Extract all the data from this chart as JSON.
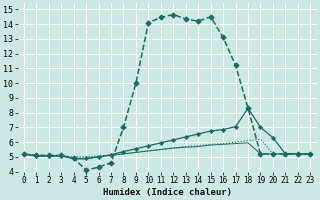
{
  "xlabel": "Humidex (Indice chaleur)",
  "bg_color": "#cce8e4",
  "grid_color": "#ffffff",
  "line_color": "#1a6b5a",
  "xlim": [
    -0.5,
    23.5
  ],
  "ylim": [
    4,
    15.4
  ],
  "xticks": [
    0,
    1,
    2,
    3,
    4,
    5,
    6,
    7,
    8,
    9,
    10,
    11,
    12,
    13,
    14,
    15,
    16,
    17,
    18,
    19,
    20,
    21,
    22,
    23
  ],
  "yticks": [
    4,
    5,
    6,
    7,
    8,
    9,
    10,
    11,
    12,
    13,
    14,
    15
  ],
  "curve1_x": [
    0,
    1,
    2,
    3,
    4,
    5,
    6,
    7,
    8,
    9,
    10,
    11,
    12,
    13,
    14,
    15,
    16,
    17,
    18,
    19,
    20,
    21,
    22,
    23
  ],
  "curve1_y": [
    5.2,
    5.1,
    5.1,
    5.1,
    4.9,
    4.1,
    4.3,
    4.6,
    7.0,
    10.0,
    14.1,
    14.45,
    14.65,
    14.35,
    14.2,
    14.5,
    13.1,
    11.2,
    8.3,
    5.2,
    5.2,
    5.2,
    5.2,
    5.2
  ],
  "curve2_x": [
    0,
    1,
    2,
    3,
    4,
    5,
    6,
    7,
    8,
    9,
    10,
    11,
    12,
    13,
    14,
    15,
    16,
    17,
    18,
    19,
    20,
    21,
    22,
    23
  ],
  "curve2_y": [
    5.2,
    5.05,
    5.05,
    5.05,
    4.9,
    4.9,
    5.0,
    5.15,
    5.35,
    5.55,
    5.75,
    5.95,
    6.15,
    6.35,
    6.55,
    6.75,
    6.85,
    7.05,
    8.3,
    7.0,
    6.3,
    5.2,
    5.2,
    5.2
  ],
  "curve3_x": [
    0,
    1,
    2,
    3,
    4,
    5,
    6,
    7,
    8,
    9,
    10,
    11,
    12,
    13,
    14,
    15,
    16,
    17,
    18,
    19,
    20,
    21,
    22,
    23
  ],
  "curve3_y": [
    5.2,
    5.05,
    5.05,
    5.05,
    5.0,
    5.0,
    5.05,
    5.1,
    5.2,
    5.3,
    5.4,
    5.5,
    5.6,
    5.7,
    5.75,
    5.85,
    5.9,
    6.0,
    6.1,
    6.2,
    5.2,
    5.2,
    5.2,
    5.2
  ],
  "curve4_x": [
    0,
    1,
    2,
    3,
    4,
    5,
    6,
    7,
    8,
    9,
    10,
    11,
    12,
    13,
    14,
    15,
    16,
    17,
    18,
    19,
    20,
    21,
    22,
    23
  ],
  "curve4_y": [
    5.2,
    5.05,
    5.05,
    5.1,
    4.85,
    4.85,
    5.0,
    5.1,
    5.2,
    5.3,
    5.4,
    5.5,
    5.6,
    5.65,
    5.7,
    5.8,
    5.85,
    5.9,
    5.95,
    5.2,
    5.2,
    5.2,
    5.2,
    5.2
  ]
}
